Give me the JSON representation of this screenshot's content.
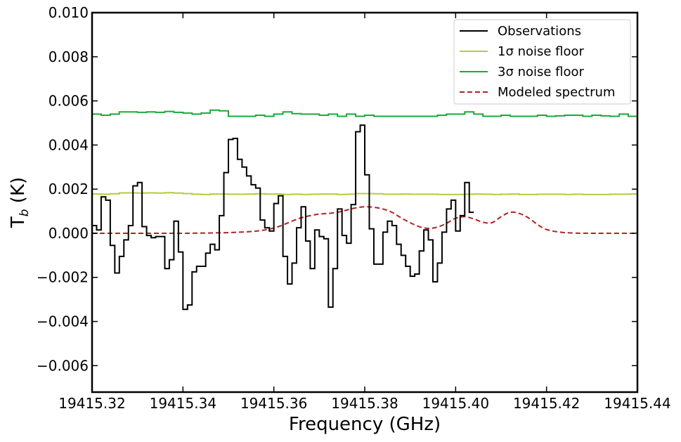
{
  "chart_data": {
    "type": "line",
    "xlabel": "Frequency (GHz)",
    "ylabel_main": "T",
    "ylabel_sub": "b",
    "ylabel_unit": " (K)",
    "xlim": [
      19415.32,
      19415.44
    ],
    "ylim": [
      -0.0072,
      0.01
    ],
    "xticks": [
      19415.32,
      19415.34,
      19415.36,
      19415.38,
      19415.4,
      19415.42,
      19415.44
    ],
    "xtick_labels": [
      "19415.32",
      "19415.34",
      "19415.36",
      "19415.38",
      "19415.40",
      "19415.42",
      "19415.44"
    ],
    "yticks": [
      0.01,
      0.008,
      0.006,
      0.004,
      0.002,
      0.0,
      -0.002,
      -0.004,
      -0.006
    ],
    "ytick_labels": [
      "0.010",
      "0.008",
      "0.006",
      "0.004",
      "0.002",
      "0.000",
      "−0.002",
      "−0.004",
      "−0.006"
    ],
    "legend_position": "top-right",
    "grid": false,
    "series": [
      {
        "name": "Observations",
        "style": "steps",
        "color": "#000000",
        "x_start": 19415.32,
        "bin_width": 0.001,
        "values": [
          0.00035,
          0.00015,
          0.00165,
          0.0015,
          -0.00055,
          -0.0018,
          -0.00105,
          -0.0003,
          0.00035,
          0.00215,
          0.0023,
          0.0003,
          -0.0001,
          -0.0002,
          -0.00015,
          -0.00015,
          -0.0016,
          -0.0012,
          0.00055,
          -0.00085,
          -0.00345,
          -0.00325,
          -0.00175,
          -0.0015,
          -0.0015,
          -0.0009,
          -0.0005,
          -0.00075,
          0.0008,
          0.00275,
          0.00425,
          0.0043,
          0.00335,
          0.003,
          0.0026,
          0.0022,
          0.00205,
          0.0006,
          0.00025,
          0.0001,
          0.00135,
          0.0017,
          -0.00105,
          -0.0023,
          -0.00135,
          0.00025,
          0.0012,
          -0.00035,
          -0.0016,
          0.00015,
          -0.00015,
          -0.00025,
          -0.00335,
          -0.0016,
          0.0011,
          -0.0001,
          -0.00045,
          0.0013,
          0.0046,
          0.0049,
          0.00265,
          0.0002,
          -0.0014,
          -0.0014,
          5e-05,
          0.00055,
          0.00035,
          -0.0005,
          -0.001,
          -0.0015,
          -0.00195,
          -0.00185,
          -0.0008,
          0.00015,
          -0.0003,
          -0.0022,
          -0.00135,
          5e-05,
          0.0011,
          0.0015,
          0.0001,
          0.0008,
          0.0023,
          0.00095
        ]
      },
      {
        "name": "1σ noise floor",
        "style": "steps",
        "color": "#b5cc3a",
        "x_start": 19415.32,
        "bin_width": 0.002,
        "values": [
          0.00178,
          0.00177,
          0.00179,
          0.00183,
          0.00183,
          0.00182,
          0.00183,
          0.00182,
          0.00184,
          0.00182,
          0.0018,
          0.00177,
          0.00176,
          0.00178,
          0.00178,
          0.00177,
          0.00177,
          0.00178,
          0.00179,
          0.00178,
          0.00178,
          0.00176,
          0.00177,
          0.00176,
          0.00177,
          0.00178,
          0.00178,
          0.00176,
          0.00177,
          0.0018,
          0.0018,
          0.00179,
          0.00177,
          0.00177,
          0.00178,
          0.00177,
          0.00177,
          0.00177,
          0.00176,
          0.00176,
          0.00176,
          0.00177,
          0.00178,
          0.00177,
          0.00176,
          0.00177,
          0.00178,
          0.00176,
          0.00176,
          0.00177,
          0.00177,
          0.00177,
          0.00176,
          0.00177,
          0.00176,
          0.00176,
          0.00176,
          0.00177,
          0.00177,
          0.00178
        ]
      },
      {
        "name": "3σ noise floor",
        "style": "steps",
        "color": "#1aaa3a",
        "x_start": 19415.32,
        "bin_width": 0.002,
        "values": [
          0.0054,
          0.00535,
          0.0054,
          0.0055,
          0.0055,
          0.00548,
          0.0055,
          0.00548,
          0.00552,
          0.00548,
          0.00545,
          0.0054,
          0.00545,
          0.00558,
          0.00555,
          0.0053,
          0.0053,
          0.0053,
          0.00535,
          0.0053,
          0.0054,
          0.0055,
          0.00542,
          0.0054,
          0.0054,
          0.00535,
          0.0054,
          0.0053,
          0.0054,
          0.0053,
          0.00535,
          0.0053,
          0.0053,
          0.0053,
          0.0053,
          0.0053,
          0.0053,
          0.0053,
          0.00535,
          0.0054,
          0.0054,
          0.0055,
          0.0054,
          0.0053,
          0.0053,
          0.00535,
          0.0053,
          0.0053,
          0.0053,
          0.00535,
          0.0053,
          0.00532,
          0.00535,
          0.00535,
          0.0053,
          0.00535,
          0.00532,
          0.0053,
          0.0054,
          0.0053
        ]
      },
      {
        "name": "Modeled spectrum",
        "style": "dashed",
        "color": "#b22222",
        "x": [
          19415.32,
          19415.33,
          19415.34,
          19415.345,
          19415.35,
          19415.355,
          19415.358,
          19415.361,
          19415.364,
          19415.366,
          19415.368,
          19415.37,
          19415.372,
          19415.374,
          19415.376,
          19415.378,
          19415.38,
          19415.382,
          19415.384,
          19415.386,
          19415.388,
          19415.39,
          19415.392,
          19415.394,
          19415.396,
          19415.398,
          19415.4,
          19415.402,
          19415.404,
          19415.406,
          19415.408,
          19415.41,
          19415.412,
          19415.414,
          19415.416,
          19415.418,
          19415.42,
          19415.423,
          19415.426,
          19415.43,
          19415.44
        ],
        "values": [
          0.0,
          0.0,
          0.0,
          1e-05,
          3e-05,
          8e-05,
          0.00015,
          0.0003,
          0.00055,
          0.0007,
          0.0008,
          0.00087,
          0.0009,
          0.00095,
          0.00105,
          0.00115,
          0.0012,
          0.00118,
          0.0011,
          0.00095,
          0.0007,
          0.00048,
          0.0003,
          0.00022,
          0.00028,
          0.00045,
          0.00068,
          0.00075,
          0.00065,
          0.0005,
          0.00048,
          0.00075,
          0.00095,
          0.0009,
          0.0007,
          0.0004,
          0.00017,
          5e-05,
          1e-05,
          0.0,
          0.0
        ]
      }
    ]
  }
}
